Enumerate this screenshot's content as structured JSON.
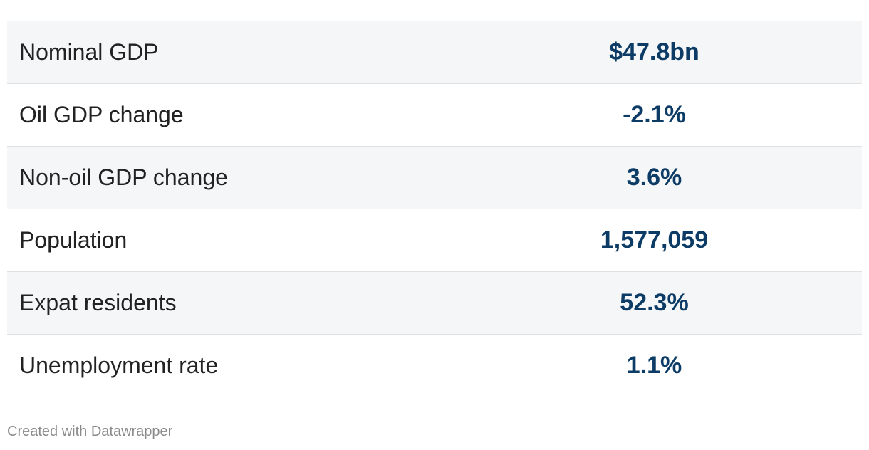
{
  "table": {
    "rows": [
      [
        "Nominal GDP",
        "$47.8bn"
      ],
      [
        "Oil GDP change",
        "-2.1%"
      ],
      [
        "Non-oil GDP change",
        "3.6%"
      ],
      [
        "Population",
        "1,577,059"
      ],
      [
        "Expat residents",
        "52.3%"
      ],
      [
        "Unemployment rate",
        "1.1%"
      ]
    ]
  },
  "footer": {
    "credit": "Created with Datawrapper"
  }
}
